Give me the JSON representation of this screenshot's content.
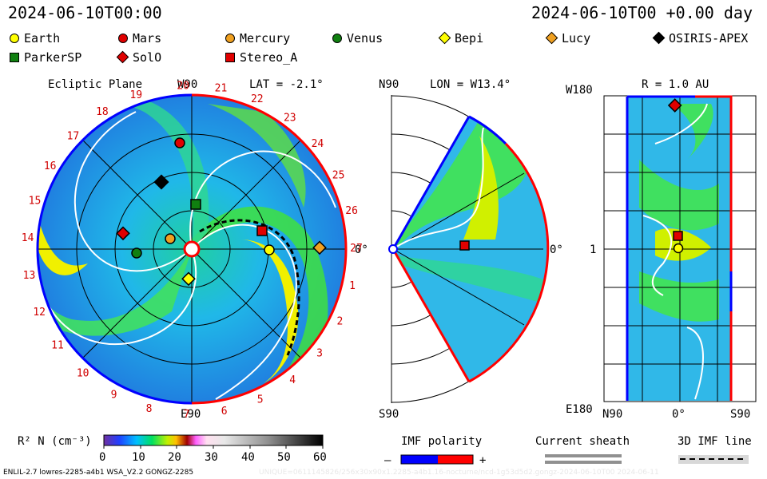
{
  "header": {
    "left_time": "2024-06-10T00:00",
    "right_time": "2024-06-10T00 +0.00 day"
  },
  "legend": [
    {
      "label": "Earth",
      "marker": "circle",
      "color": "#ffff00"
    },
    {
      "label": "Mars",
      "marker": "circle",
      "color": "#e00000"
    },
    {
      "label": "Mercury",
      "marker": "circle",
      "color": "#f0a020"
    },
    {
      "label": "Venus",
      "marker": "circle",
      "color": "#108010"
    },
    {
      "label": "Bepi",
      "marker": "diamond",
      "color": "#ffff00"
    },
    {
      "label": "Lucy",
      "marker": "diamond",
      "color": "#f0a020"
    },
    {
      "label": "OSIRIS-APEX",
      "marker": "diamond",
      "color": "#000000"
    },
    {
      "label": "ParkerSP",
      "marker": "square",
      "color": "#108010"
    },
    {
      "label": "SolO",
      "marker": "diamond",
      "color": "#e00000"
    },
    {
      "label": "Stereo_A",
      "marker": "square",
      "color": "#e00000"
    }
  ],
  "panels": {
    "ecliptic": {
      "title": "Ecliptic Plane",
      "top": "W90",
      "lat": "LAT = -2.1°",
      "right": "0°",
      "bottom": "E90",
      "ticks": [
        "20",
        "21",
        "22",
        "23",
        "24",
        "25",
        "26",
        "27",
        "1",
        "2",
        "3",
        "4",
        "5",
        "6",
        "7",
        "8",
        "9",
        "10",
        "11",
        "12",
        "13",
        "14",
        "15",
        "16",
        "17",
        "18",
        "19"
      ]
    },
    "meridional": {
      "top": "N90",
      "lon": "LON = W13.4°",
      "right": "0°",
      "bottom": "S90"
    },
    "radial": {
      "top_left": "W180",
      "r": "R = 1.0 AU",
      "mid": "1",
      "bottom_left": "E180",
      "x_left": "N90",
      "x_mid": "0°",
      "x_right": "S90"
    }
  },
  "colorbar": {
    "label": "R² N (cm⁻³)",
    "ticks": [
      "0",
      "10",
      "20",
      "30",
      "40",
      "50",
      "60"
    ]
  },
  "imf": {
    "title": "IMF polarity",
    "minus": "–",
    "plus": "+",
    "colors": {
      "negative": "#0000ff",
      "positive": "#ff0000"
    }
  },
  "current_sheath": {
    "title": "Current sheath"
  },
  "imf_line": {
    "title": "3D IMF line"
  },
  "footer": {
    "left": "ENLIL-2.7 lowres-2285-a4b1 WSA_V2.2 GONGZ-2285",
    "right": "UNIQUE=0611145826/256x30x90x1.2285-a4b1.16-nocturne/ncd-1g53d5d2.gongz-2024-06-10T00   2024-06-11"
  },
  "chart_data": [
    {
      "type": "heatmap",
      "title": "Ecliptic Plane",
      "variable": "R² N (cm⁻³)",
      "range": [
        0,
        60
      ],
      "bodies": [
        "Earth",
        "Mars",
        "Mercury",
        "Venus",
        "Bepi",
        "Lucy",
        "OSIRIS-APEX",
        "ParkerSP",
        "SolO",
        "Stereo_A"
      ]
    },
    {
      "type": "heatmap",
      "variable": "R² N (cm⁻³)",
      "range": [
        0,
        60
      ]
    },
    {
      "type": "heatmap",
      "title": "R = 1.0 AU",
      "variable": "R² N (cm⁻³)",
      "range": [
        0,
        60
      ]
    }
  ]
}
